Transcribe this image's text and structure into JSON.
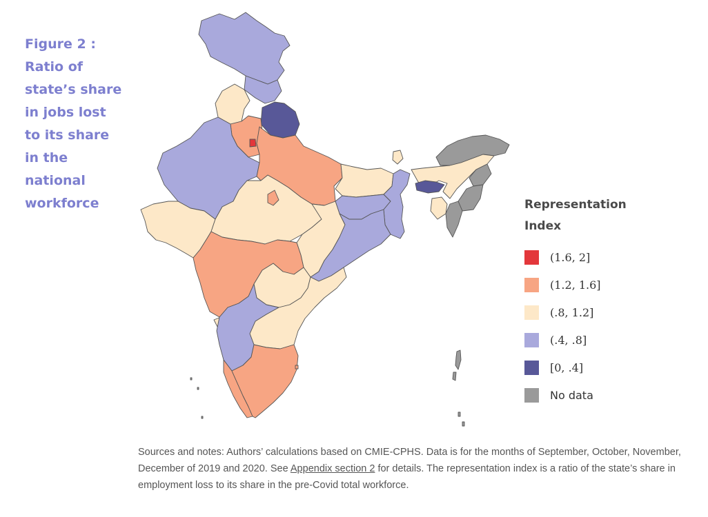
{
  "figure": {
    "title_lines": [
      "Figure 2 :",
      "Ratio of",
      "state’s share",
      "in jobs lost",
      "to its share",
      "in the",
      "national",
      "workforce"
    ]
  },
  "legend": {
    "title_lines": [
      "Representation",
      "Index"
    ],
    "items": [
      {
        "label": "(1.6, 2]",
        "color": "#e3373b"
      },
      {
        "label": "(1.2, 1.6]",
        "color": "#f7a583"
      },
      {
        "label": "(.8, 1.2]",
        "color": "#fde8c8"
      },
      {
        "label": "(.4, .8]",
        "color": "#a9a9dc"
      },
      {
        "label": "[0, .4]",
        "color": "#585898"
      },
      {
        "label": "No data",
        "color": "#9a9a9a"
      }
    ]
  },
  "notes": {
    "part1": "Sources and notes: Authors’ calculations based on CMIE-CPHS. Data is for the months of September, October, November, December of 2019 and 2020. See ",
    "link": "Appendix section 2",
    "part2": " for details. The representation index is a ratio of the state’s share in employment loss to its share in the pre-Covid total workforce."
  }
}
